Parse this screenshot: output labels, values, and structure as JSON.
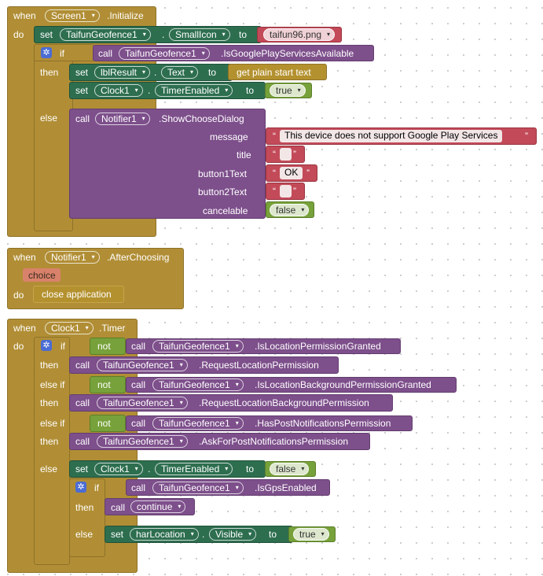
{
  "blocks": {
    "init": {
      "when": "when",
      "component": "Screen1",
      "event": ".Initialize",
      "do": "do",
      "set1": {
        "set": "set",
        "component": "TaifunGeofence1",
        "dot": ".",
        "prop": "SmallIcon",
        "to": "to",
        "value": "taifun96.png"
      },
      "if": {
        "if": "if",
        "then": "then",
        "else": "else",
        "call": "call",
        "component": "TaifunGeofence1",
        "method": ".IsGooglePlayServicesAvailable",
        "then_set1": {
          "set": "set",
          "component": "lblResult",
          "dot": ".",
          "prop": "Text",
          "to": "to",
          "value": "get plain start text"
        },
        "then_set2": {
          "set": "set",
          "component": "Clock1",
          "dot": ".",
          "prop": "TimerEnabled",
          "to": "to",
          "value": "true"
        },
        "else_call": {
          "call": "call",
          "component": "Notifier1",
          "method": ".ShowChooseDialog",
          "message_label": "message",
          "message": "This device does not support Google Play Services",
          "title_label": "title",
          "title": "",
          "button1_label": "button1Text",
          "button1": "OK",
          "button2_label": "button2Text",
          "button2": "",
          "cancelable_label": "cancelable",
          "cancelable": "false"
        }
      }
    },
    "after": {
      "when": "when",
      "component": "Notifier1",
      "event": ".AfterChoosing",
      "param": "choice",
      "do": "do",
      "action": "close application"
    },
    "timer": {
      "when": "when",
      "component": "Clock1",
      "event": ".Timer",
      "do": "do",
      "if": "if",
      "then": "then",
      "else_if": "else if",
      "else": "else",
      "not": "not",
      "call": "call",
      "c1": {
        "component": "TaifunGeofence1",
        "method": ".IsLocationPermissionGranted"
      },
      "t1": {
        "component": "TaifunGeofence1",
        "method": ".RequestLocationPermission"
      },
      "c2": {
        "component": "TaifunGeofence1",
        "method": ".IsLocationBackgroundPermissionGranted"
      },
      "t2": {
        "component": "TaifunGeofence1",
        "method": ".RequestLocationBackgroundPermission"
      },
      "c3": {
        "component": "TaifunGeofence1",
        "method": ".HasPostNotificationsPermission"
      },
      "t3": {
        "component": "TaifunGeofence1",
        "method": ".AskForPostNotificationsPermission"
      },
      "e_set": {
        "set": "set",
        "component": "Clock1",
        "dot": ".",
        "prop": "TimerEnabled",
        "to": "to",
        "value": "false"
      },
      "inner_if": {
        "if": "if",
        "then": "then",
        "else": "else",
        "component": "TaifunGeofence1",
        "method": ".IsGpsEnabled",
        "then_call": "continue",
        "else_set": {
          "set": "set",
          "component": "harLocation",
          "dot": ".",
          "prop": "Visible",
          "to": "to",
          "value": "true"
        }
      }
    }
  },
  "icons": {
    "dropdown": "▾",
    "gear": "✲",
    "open_quote": "“",
    "close_quote": "”"
  }
}
